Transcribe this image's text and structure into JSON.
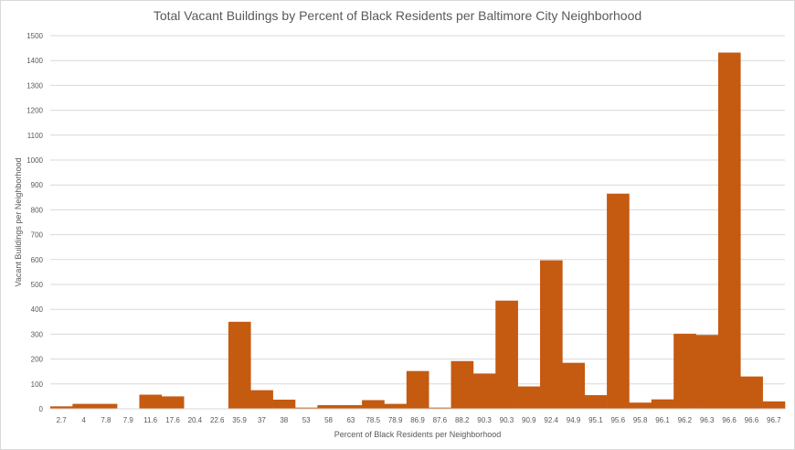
{
  "chart_data": {
    "type": "bar",
    "title": "Total Vacant Buildings  by Percent of Black Residents per Baltimore City Neighborhood",
    "xlabel": "Percent  of Black Residents per Neighborhood",
    "ylabel": "Vacant Buildings  per Neighborhood",
    "ylim": [
      0,
      1500
    ],
    "yticks": [
      "0",
      "100",
      "200",
      "300",
      "400",
      "500",
      "600",
      "700",
      "800",
      "900",
      "1000",
      "1100",
      "1200",
      "1300",
      "1400",
      "1500"
    ],
    "grid": true,
    "legend": "none",
    "bar_color": "#c55a11",
    "categories": [
      "2.7",
      "4",
      "7.8",
      "7.9",
      "11.6",
      "17.6",
      "20.4",
      "22.6",
      "35.9",
      "37",
      "38",
      "53",
      "58",
      "63",
      "78.5",
      "78.9",
      "86.9",
      "87.6",
      "88.2",
      "90.3",
      "90.3",
      "90.9",
      "92.4",
      "94.9",
      "95.1",
      "95.6",
      "95.8",
      "96.1",
      "96.2",
      "96.3",
      "96.6",
      "96.6",
      "96.7"
    ],
    "x_tick_labels": [
      "2.7",
      "4",
      "7.8",
      "7.9",
      "11.6",
      "17.6",
      "20.4",
      "22.6",
      "35.9",
      "37",
      "38",
      "53",
      "58",
      "63",
      "78.5",
      "78.9",
      "86.9",
      "87.6",
      "88.2",
      "90.3",
      "90.3",
      "90.9",
      "92.4",
      "94.9",
      "95.1",
      "95.6",
      "95.8",
      "96.1",
      "96.2",
      "96.3",
      "96.6",
      "96.6",
      "96.7"
    ],
    "values": [
      10,
      20,
      20,
      0,
      57,
      50,
      0,
      0,
      350,
      75,
      37,
      5,
      15,
      15,
      35,
      20,
      152,
      5,
      192,
      142,
      435,
      90,
      597,
      185,
      55,
      865,
      25,
      38,
      302,
      297,
      1432,
      130,
      30
    ]
  }
}
